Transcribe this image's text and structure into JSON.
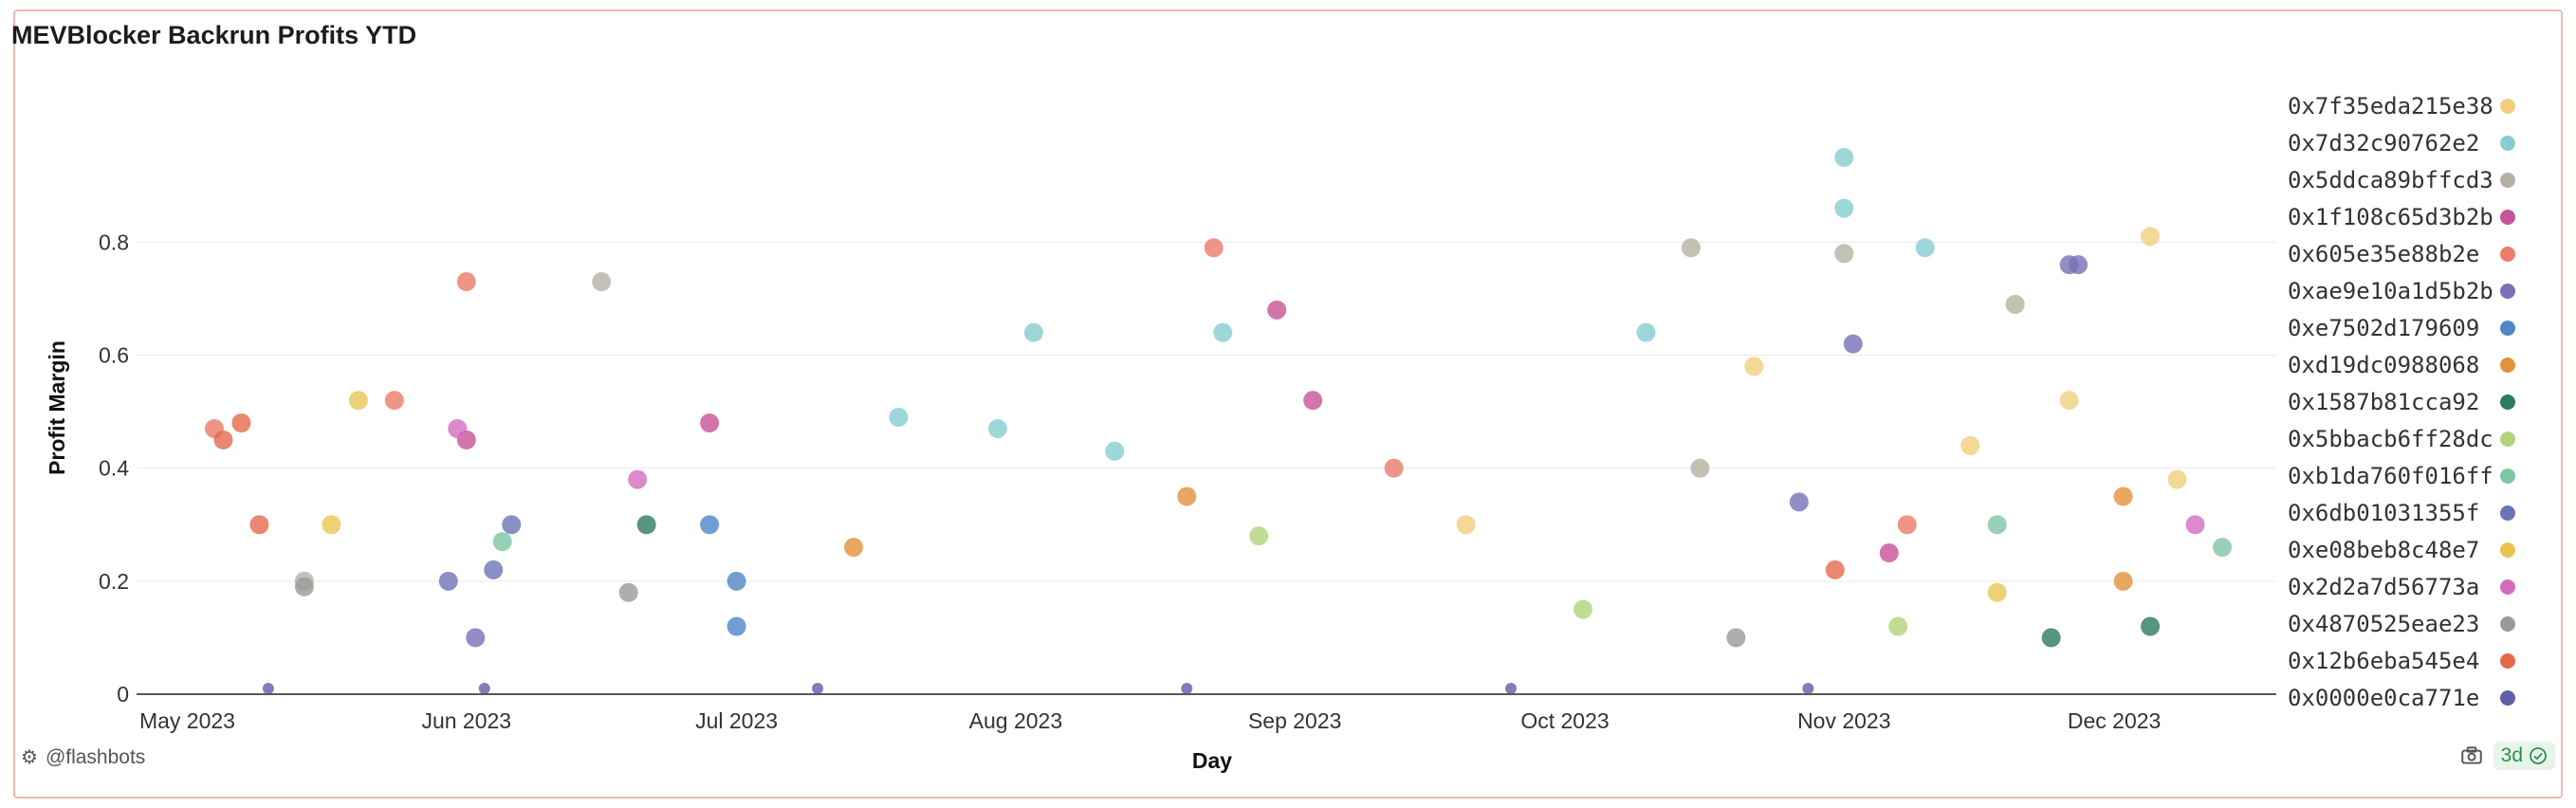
{
  "title": "MEVBlocker Backrun Profits YTD",
  "footer": {
    "handle": "@flashbots",
    "freshness": "3d"
  },
  "icons": {
    "logo": "flashbots-logo-icon",
    "camera": "camera-icon",
    "check": "check-circle-icon"
  },
  "chart_data": {
    "type": "scatter",
    "title": "MEVBlocker Backrun Profits YTD",
    "xlabel": "Day",
    "ylabel": "Profit Margin",
    "x_axis": "date",
    "xlim": [
      "2023-04-26",
      "2023-12-19"
    ],
    "ylim": [
      0,
      0.96
    ],
    "x_ticks": [
      {
        "label": "May 2023",
        "date": "2023-05-01"
      },
      {
        "label": "Jun 2023",
        "date": "2023-06-01"
      },
      {
        "label": "Jul 2023",
        "date": "2023-07-01"
      },
      {
        "label": "Aug 2023",
        "date": "2023-08-01"
      },
      {
        "label": "Sep 2023",
        "date": "2023-09-01"
      },
      {
        "label": "Oct 2023",
        "date": "2023-10-01"
      },
      {
        "label": "Nov 2023",
        "date": "2023-11-01"
      },
      {
        "label": "Dec 2023",
        "date": "2023-12-01"
      }
    ],
    "y_ticks": [
      {
        "label": "0",
        "value": 0
      },
      {
        "label": "0.2",
        "value": 0.2
      },
      {
        "label": "0.4",
        "value": 0.4
      },
      {
        "label": "0.6",
        "value": 0.6
      },
      {
        "label": "0.8",
        "value": 0.8
      }
    ],
    "grid": "horizontal",
    "legend_position": "right",
    "series": [
      {
        "name": "0x7f35eda215e38",
        "color": "#f0cf7e",
        "points": [
          [
            "2023-12-05",
            0.81
          ],
          [
            "2023-11-26",
            0.52
          ],
          [
            "2023-10-22",
            0.58
          ],
          [
            "2023-11-15",
            0.44
          ],
          [
            "2023-12-08",
            0.38
          ],
          [
            "2023-09-20",
            0.3
          ]
        ]
      },
      {
        "name": "0x7d32c90762e2",
        "color": "#86cdd1",
        "points": [
          [
            "2023-11-01",
            0.95
          ],
          [
            "2023-11-01",
            0.86
          ],
          [
            "2023-11-10",
            0.79
          ],
          [
            "2023-10-10",
            0.64
          ],
          [
            "2023-08-03",
            0.64
          ],
          [
            "2023-08-24",
            0.64
          ],
          [
            "2023-07-19",
            0.49
          ],
          [
            "2023-07-30",
            0.47
          ],
          [
            "2023-08-12",
            0.43
          ]
        ]
      },
      {
        "name": "0x5ddca89bffcd3",
        "color": "#b4b0a1",
        "points": [
          [
            "2023-10-15",
            0.79
          ],
          [
            "2023-11-01",
            0.78
          ],
          [
            "2023-06-16",
            0.73
          ],
          [
            "2023-05-14",
            0.2
          ],
          [
            "2023-10-16",
            0.4
          ],
          [
            "2023-11-20",
            0.69
          ]
        ]
      },
      {
        "name": "0x1f108c65d3b2b",
        "color": "#c85395",
        "points": [
          [
            "2023-08-30",
            0.68
          ],
          [
            "2023-06-01",
            0.45
          ],
          [
            "2023-06-28",
            0.48
          ],
          [
            "2023-11-06",
            0.25
          ],
          [
            "2023-09-03",
            0.52
          ]
        ]
      },
      {
        "name": "0x605e35e88b2e",
        "color": "#eb7b6a",
        "points": [
          [
            "2023-08-23",
            0.79
          ],
          [
            "2023-06-01",
            0.73
          ],
          [
            "2023-05-24",
            0.52
          ],
          [
            "2023-05-04",
            0.47
          ],
          [
            "2023-11-08",
            0.3
          ],
          [
            "2023-09-12",
            0.4
          ]
        ]
      },
      {
        "name": "0xae9e10a1d5b2b",
        "color": "#7871b8",
        "points": [
          [
            "2023-11-26",
            0.76
          ],
          [
            "2023-11-27",
            0.76
          ],
          [
            "2023-10-27",
            0.34
          ],
          [
            "2023-11-02",
            0.62
          ],
          [
            "2023-06-02",
            0.1
          ]
        ]
      },
      {
        "name": "0xe7502d179609",
        "color": "#4e86c7",
        "points": [
          [
            "2023-07-01",
            0.2
          ],
          [
            "2023-07-01",
            0.12
          ],
          [
            "2023-06-28",
            0.3
          ]
        ]
      },
      {
        "name": "0xd19dc0988068",
        "color": "#e3913a",
        "points": [
          [
            "2023-12-02",
            0.35
          ],
          [
            "2023-12-02",
            0.2
          ],
          [
            "2023-07-14",
            0.26
          ],
          [
            "2023-08-20",
            0.35
          ]
        ]
      },
      {
        "name": "0x1587b81cca92",
        "color": "#2d7a5e",
        "points": [
          [
            "2023-06-21",
            0.3
          ],
          [
            "2023-12-05",
            0.12
          ],
          [
            "2023-11-24",
            0.1
          ]
        ]
      },
      {
        "name": "0x5bbacb6ff28dc",
        "color": "#b2d37a",
        "points": [
          [
            "2023-08-28",
            0.28
          ],
          [
            "2023-10-03",
            0.15
          ],
          [
            "2023-11-07",
            0.12
          ]
        ]
      },
      {
        "name": "0xb1da760f016ff",
        "color": "#7fc6a4",
        "points": [
          [
            "2023-11-18",
            0.3
          ],
          [
            "2023-06-05",
            0.27
          ],
          [
            "2023-12-13",
            0.26
          ]
        ]
      },
      {
        "name": "0x6db01031355f",
        "color": "#6b75b5",
        "points": [
          [
            "2023-06-04",
            0.22
          ],
          [
            "2023-06-06",
            0.3
          ],
          [
            "2023-05-30",
            0.2
          ]
        ]
      },
      {
        "name": "0xe08beb8c48e7",
        "color": "#eac452",
        "points": [
          [
            "2023-05-17",
            0.3
          ],
          [
            "2023-05-20",
            0.52
          ],
          [
            "2023-11-18",
            0.18
          ]
        ]
      },
      {
        "name": "0x2d2a7d56773a",
        "color": "#d46dc0",
        "points": [
          [
            "2023-05-31",
            0.47
          ],
          [
            "2023-06-20",
            0.38
          ],
          [
            "2023-12-10",
            0.3
          ]
        ]
      },
      {
        "name": "0x4870525eae23",
        "color": "#9a9a9a",
        "points": [
          [
            "2023-05-14",
            0.19
          ],
          [
            "2023-10-20",
            0.1
          ],
          [
            "2023-06-19",
            0.18
          ]
        ]
      },
      {
        "name": "0x12b6eba545e4",
        "color": "#e46a4a",
        "points": [
          [
            "2023-05-07",
            0.48
          ],
          [
            "2023-05-05",
            0.45
          ],
          [
            "2023-05-09",
            0.3
          ],
          [
            "2023-10-31",
            0.22
          ]
        ]
      },
      {
        "name": "0x0000e0ca771e",
        "color": "#5d5fa8",
        "points": [
          [
            "2023-05-10",
            0.01
          ],
          [
            "2023-06-03",
            0.01
          ],
          [
            "2023-07-10",
            0.01
          ],
          [
            "2023-08-20",
            0.01
          ],
          [
            "2023-09-25",
            0.01
          ],
          [
            "2023-10-28",
            0.01
          ]
        ]
      }
    ]
  }
}
